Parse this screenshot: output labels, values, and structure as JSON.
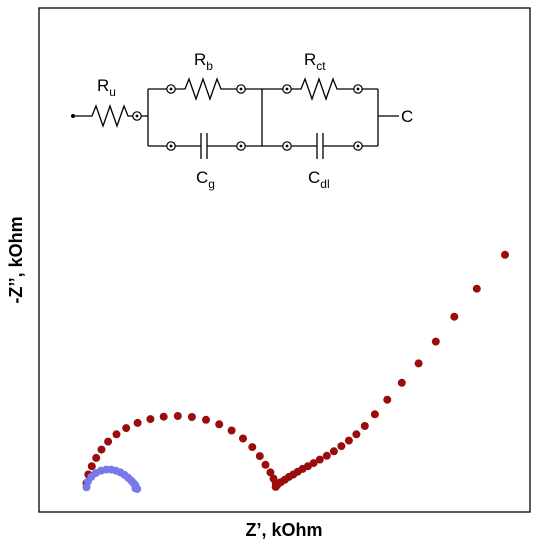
{
  "chart_data": {
    "type": "scatter",
    "title": "",
    "xlabel": "Z’, kOhm",
    "ylabel": "-Z’’, kOhm",
    "xlim": [
      0,
      100
    ],
    "ylim": [
      0,
      100
    ],
    "grid": false,
    "legend": "none",
    "tick_labels": false,
    "series": [
      {
        "color": "#9b0d0d",
        "x": [
          5.1,
          5.5,
          6.3,
          7.3,
          8.5,
          10.0,
          11.9,
          14.1,
          16.7,
          19.6,
          22.6,
          25.8,
          29.0,
          32.2,
          35.2,
          38.0,
          40.6,
          42.7,
          44.4,
          45.7,
          46.8,
          47.5,
          48.0,
          48.2,
          48.0,
          48.4,
          49.2,
          50.1,
          51.0,
          52.0,
          53.0,
          54.1,
          55.3,
          56.6,
          58.0,
          59.6,
          61.2,
          62.9,
          64.6,
          66.3,
          68.2,
          70.5,
          73.3,
          76.6,
          80.4,
          84.3,
          88.5,
          93.6,
          100.0
        ],
        "y": [
          1.7,
          4.2,
          6.6,
          9.0,
          11.4,
          13.7,
          15.8,
          17.6,
          19.1,
          20.2,
          20.9,
          21.1,
          20.8,
          20.0,
          18.7,
          16.9,
          14.6,
          12.1,
          9.5,
          7.0,
          4.8,
          3.0,
          1.8,
          1.0,
          0.6,
          1.2,
          2.0,
          2.7,
          3.5,
          4.2,
          5.0,
          5.8,
          6.6,
          7.5,
          8.5,
          9.6,
          10.9,
          12.4,
          14.0,
          15.8,
          18.2,
          21.6,
          25.8,
          30.7,
          36.3,
          42.6,
          49.8,
          57.9,
          67.7
        ]
      },
      {
        "color": "#7878ea",
        "x": [
          5.1,
          5.4,
          6.2,
          7.2,
          8.4,
          9.6,
          10.7,
          11.8,
          12.8,
          13.7,
          14.5,
          15.2,
          15.7,
          16.1,
          16.3,
          16.2,
          16.6
        ],
        "y": [
          0.5,
          2.1,
          3.5,
          4.6,
          5.3,
          5.6,
          5.6,
          5.3,
          4.8,
          4.1,
          3.3,
          2.5,
          1.8,
          1.2,
          0.7,
          0.2,
          0.0
        ]
      }
    ],
    "inset_circuit": {
      "labels": {
        "r_u": {
          "main": "R",
          "sub": "u"
        },
        "r_b": {
          "main": "R",
          "sub": "b"
        },
        "r_ct": {
          "main": "R",
          "sub": "ct"
        },
        "c_g": {
          "main": "C",
          "sub": "g"
        },
        "c_dl": {
          "main": "C",
          "sub": "dl"
        },
        "output": {
          "main": "C",
          "sub": ""
        }
      }
    }
  }
}
